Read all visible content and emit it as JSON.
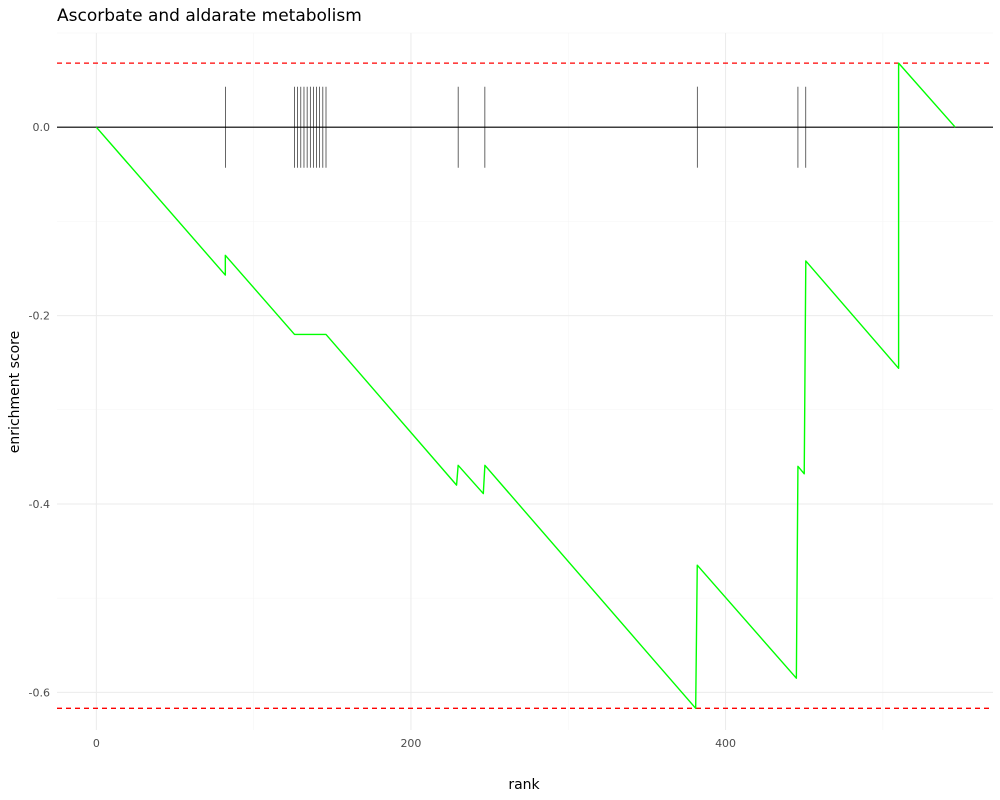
{
  "chart_data": {
    "type": "line",
    "title": "Ascorbate and aldarate metabolism",
    "xlabel": "rank",
    "ylabel": "enrichment score",
    "xlim": [
      -25,
      570
    ],
    "ylim": [
      -0.64,
      0.1
    ],
    "x_ticks": [
      0,
      200,
      400
    ],
    "x_tick_labels": [
      "0",
      "200",
      "400"
    ],
    "y_ticks": [
      0.0,
      -0.2,
      -0.4,
      -0.6
    ],
    "y_tick_labels": [
      "0.0",
      "-0.2",
      "-0.4",
      "-0.6"
    ],
    "grid": true,
    "zero_line": 0.0,
    "colors": {
      "curve": "#00ff00",
      "threshold": "#ff0000",
      "zero": "#000000",
      "hits": "#000000"
    },
    "thresholds": {
      "max": 0.068,
      "min": -0.617
    },
    "hit_tick_range": [
      -0.043,
      0.043
    ],
    "hit_ranks": [
      82,
      126,
      128,
      130,
      132,
      134,
      136,
      138,
      140,
      142,
      144,
      146,
      230,
      247,
      382,
      446,
      451,
      510
    ],
    "series": [
      {
        "values_x": [
          0,
          82,
          82,
          126,
          146,
          229,
          230,
          246,
          247,
          381,
          382,
          445,
          446,
          450,
          451,
          510,
          510,
          546
        ],
        "values_y": [
          0.0,
          -0.157,
          -0.136,
          -0.22,
          -0.22,
          -0.38,
          -0.359,
          -0.389,
          -0.359,
          -0.617,
          -0.465,
          -0.585,
          -0.36,
          -0.368,
          -0.142,
          -0.256,
          0.068,
          0.0
        ]
      }
    ]
  }
}
